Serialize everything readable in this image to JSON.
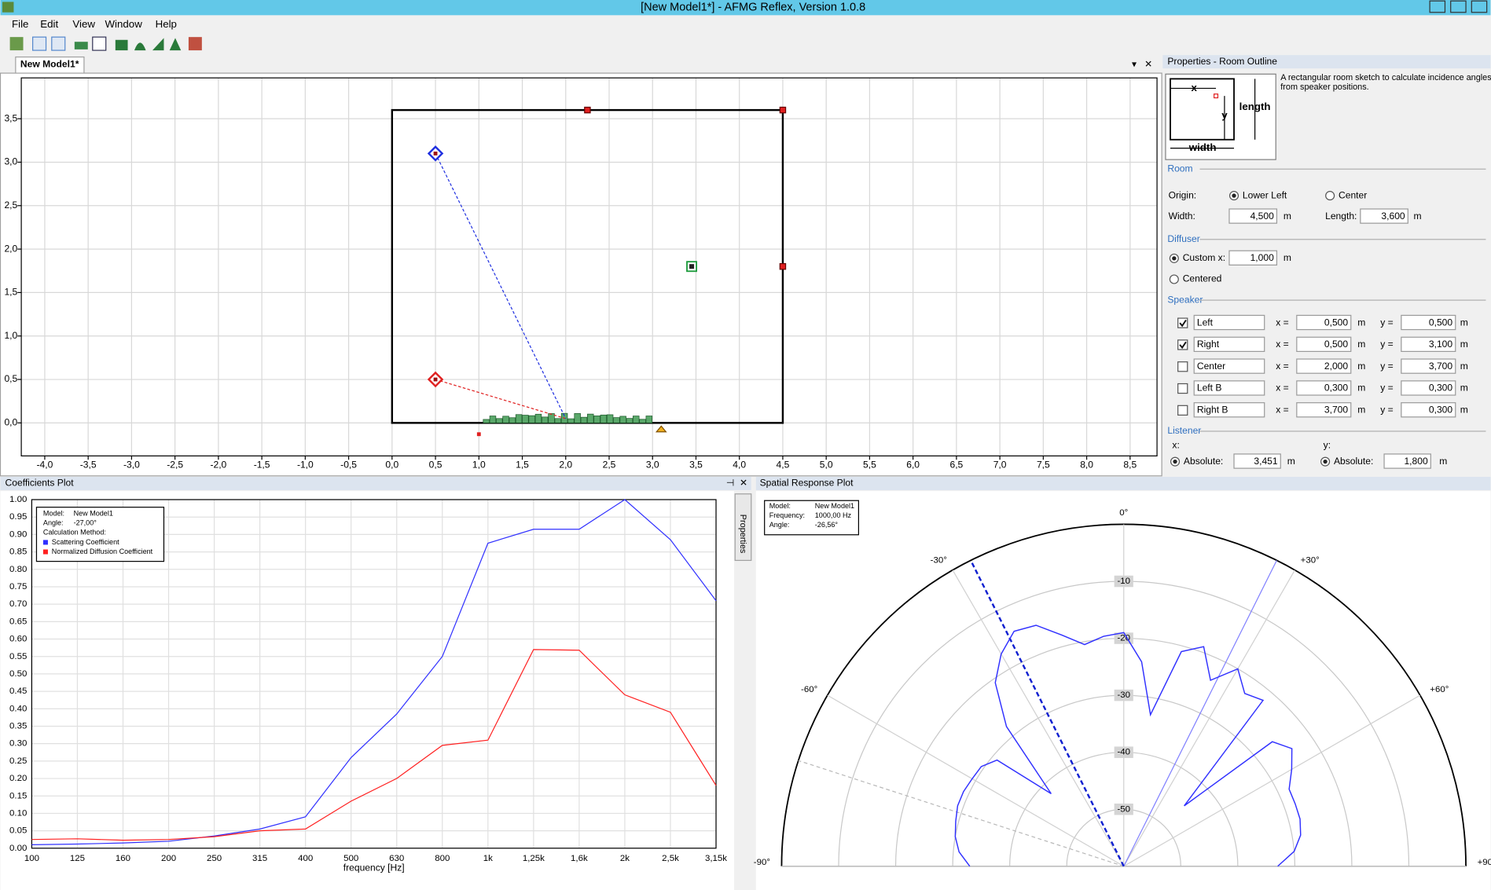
{
  "window": {
    "title": "[New Model1*] - AFMG Reflex, Version 1.0.8",
    "menu": [
      "File",
      "Edit",
      "View",
      "Window",
      "Help"
    ]
  },
  "document_tab": "New Model1*",
  "room_view": {
    "type": "room",
    "xlim": [
      -4.27,
      8.81
    ],
    "ylim": [
      -0.38,
      3.97
    ],
    "grid": true,
    "xticks": [
      {
        "value": -4,
        "label": "-4,0"
      },
      {
        "value": -3.5,
        "label": "-3,5"
      },
      {
        "value": -3,
        "label": "-3,0"
      },
      {
        "value": -2.5,
        "label": "-2,5"
      },
      {
        "value": -2,
        "label": "-2,0"
      },
      {
        "value": -1.5,
        "label": "-1,5"
      },
      {
        "value": -1,
        "label": "-1,0"
      },
      {
        "value": -0.5,
        "label": "-0,5"
      },
      {
        "value": 0,
        "label": "0,0"
      },
      {
        "value": 0.5,
        "label": "0,5"
      },
      {
        "value": 1,
        "label": "1,0"
      },
      {
        "value": 1.5,
        "label": "1,5"
      },
      {
        "value": 2,
        "label": "2,0"
      },
      {
        "value": 2.5,
        "label": "2,5"
      },
      {
        "value": 3,
        "label": "3,0"
      },
      {
        "value": 3.5,
        "label": "3,5"
      },
      {
        "value": 4,
        "label": "4,0"
      },
      {
        "value": 4.5,
        "label": "4,5"
      },
      {
        "value": 5,
        "label": "5,0"
      },
      {
        "value": 5.5,
        "label": "5,5"
      },
      {
        "value": 6,
        "label": "6,0"
      },
      {
        "value": 6.5,
        "label": "6,5"
      },
      {
        "value": 7,
        "label": "7,0"
      },
      {
        "value": 7.5,
        "label": "7,5"
      },
      {
        "value": 8,
        "label": "8,0"
      },
      {
        "value": 8.5,
        "label": "8,5"
      }
    ],
    "yticks": [
      {
        "value": 0,
        "label": "0,0"
      },
      {
        "value": 0.5,
        "label": "0,5"
      },
      {
        "value": 1,
        "label": "1,0"
      },
      {
        "value": 1.5,
        "label": "1,5"
      },
      {
        "value": 2,
        "label": "2,0"
      },
      {
        "value": 2.5,
        "label": "2,5"
      },
      {
        "value": 3,
        "label": "3,0"
      },
      {
        "value": 3.5,
        "label": "3,5"
      }
    ],
    "listener_color": "#1a9a3a"
  },
  "properties": {
    "title": "Properties - Room Outline",
    "description": [
      "A rectangular room sketch to calculate incidence angles",
      "from speaker positions."
    ],
    "sketch": {
      "x": "x",
      "y": "y",
      "length": "length",
      "width": "width"
    },
    "unit": "m",
    "room": {
      "section": "Room",
      "origin_label": "Origin:",
      "origin_options": [
        "Lower Left",
        "Center"
      ],
      "origin_selected": 0,
      "width_label": "Width:",
      "width": {
        "value": 4.5,
        "label": "4,500"
      },
      "length_label": "Length:",
      "length": {
        "value": 3.6,
        "label": "3,600"
      }
    },
    "diffuser": {
      "section": "Diffuser",
      "options": [
        "Custom x:",
        "Centered"
      ],
      "selected": 0,
      "custom_x": {
        "value": 1,
        "label": "1,000"
      }
    },
    "speaker": {
      "section": "Speaker",
      "x_label": "x =",
      "y_label": "y =",
      "items": [
        {
          "name": "Left",
          "checked": true,
          "color": "#e02020",
          "x": {
            "value": 0.5,
            "label": "0,500"
          },
          "y": {
            "value": 0.5,
            "label": "0,500"
          }
        },
        {
          "name": "Right",
          "checked": true,
          "color": "#2030e0",
          "x": {
            "value": 0.5,
            "label": "0,500"
          },
          "y": {
            "value": 3.1,
            "label": "3,100"
          }
        },
        {
          "name": "Center",
          "checked": false,
          "x": {
            "value": 2,
            "label": "2,000"
          },
          "y": {
            "value": 3.7,
            "label": "3,700"
          }
        },
        {
          "name": "Left B",
          "checked": false,
          "x": {
            "value": 0.3,
            "label": "0,300"
          },
          "y": {
            "value": 0.3,
            "label": "0,300"
          }
        },
        {
          "name": "Right B",
          "checked": false,
          "x": {
            "value": 3.7,
            "label": "3,700"
          },
          "y": {
            "value": 0.3,
            "label": "0,300"
          }
        }
      ]
    },
    "listener": {
      "section": "Listener",
      "x_label": "x:",
      "y_label": "y:",
      "mode": "Absolute:",
      "x": {
        "value": 3.451,
        "label": "3,451"
      },
      "y": {
        "value": 1.8,
        "label": "1,800"
      }
    }
  },
  "coefficients_plot": {
    "panel_title": "Coefficients Plot",
    "side_tab": "Properties",
    "info": [
      [
        "Model:",
        "New Model1"
      ],
      [
        "Angle:",
        "-27,00°"
      ],
      [
        "Calculation Method:"
      ]
    ],
    "chart": {
      "type": "line",
      "xlabel": "frequency [Hz]",
      "categories": [
        "100",
        "125",
        "160",
        "200",
        "250",
        "315",
        "400",
        "500",
        "630",
        "800",
        "1k",
        "1,25k",
        "1,6k",
        "2k",
        "2,5k",
        "3,15k"
      ],
      "ylim": [
        0,
        1
      ],
      "grid": true,
      "yticks": [
        {
          "value": 0,
          "label": "0.00"
        },
        0.05,
        {
          "value": 0.1,
          "label": "0.10"
        },
        0.15,
        {
          "value": 0.2,
          "label": "0.20"
        },
        0.25,
        {
          "value": 0.3,
          "label": "0.30"
        },
        0.35,
        {
          "value": 0.4,
          "label": "0.40"
        },
        0.45,
        {
          "value": 0.5,
          "label": "0.50"
        },
        0.55,
        {
          "value": 0.6,
          "label": "0.60"
        },
        0.65,
        {
          "value": 0.7,
          "label": "0.70"
        },
        0.75,
        {
          "value": 0.8,
          "label": "0.80"
        },
        0.85,
        {
          "value": 0.9,
          "label": "0.90"
        },
        0.95,
        {
          "value": 1,
          "label": "1.00"
        }
      ],
      "series": [
        {
          "name": "Scattering Coefficient",
          "color": "#3030ff",
          "values": [
            0.01,
            0.012,
            0.015,
            0.02,
            0.035,
            0.055,
            0.09,
            0.26,
            0.385,
            0.55,
            0.875,
            0.915,
            0.915,
            1.0,
            0.885,
            0.71
          ]
        },
        {
          "name": "Normalized Diffusion Coefficient",
          "color": "#ff2020",
          "values": [
            0.025,
            0.027,
            0.023,
            0.025,
            0.033,
            0.05,
            0.055,
            0.135,
            0.2,
            0.295,
            0.31,
            0.57,
            0.568,
            0.44,
            0.39,
            0.18
          ]
        }
      ]
    }
  },
  "spatial_plot": {
    "panel_title": "Spatial Response Plot",
    "info": [
      [
        "Model:",
        "New Model1"
      ],
      [
        "Frequency:",
        "1000,00 Hz"
      ],
      [
        "Angle:"
      ]
    ],
    "angle": {
      "value": -26.56,
      "label": "-26,56°"
    },
    "chart": {
      "type": "polar",
      "color": "#3030ff",
      "rlim": [
        -60,
        0
      ],
      "rticks": [
        -10,
        -20,
        -30,
        -40,
        -50
      ],
      "angle_ticks": [
        {
          "value": -90,
          "label": "-90°"
        },
        {
          "value": -60,
          "label": "-60°"
        },
        {
          "value": -30,
          "label": "-30°"
        },
        {
          "value": 0,
          "label": "0°"
        },
        {
          "value": 30,
          "label": "+30°"
        },
        {
          "value": 60,
          "label": "+60°"
        },
        {
          "value": 90,
          "label": "+90°"
        }
      ],
      "x": [
        -90,
        -85,
        -80,
        -75,
        -70,
        -65,
        -60,
        -55,
        -50,
        -45,
        -40,
        -35,
        -30,
        -25,
        -20,
        -15,
        -10,
        -5,
        0,
        5,
        10,
        15,
        20,
        25,
        30,
        35,
        40,
        45,
        50,
        55,
        60,
        65,
        70,
        75,
        80,
        85,
        90
      ],
      "values": [
        -33,
        -31,
        -30,
        -29.5,
        -29,
        -29,
        -29.3,
        -29.5,
        -31,
        -42,
        -28,
        -20.7,
        -17,
        -14.5,
        -15,
        -18,
        -20.5,
        -19.5,
        -19,
        -24,
        -33,
        -21,
        -19,
        -24,
        -20,
        -23,
        -22,
        -45,
        -26,
        -24,
        -26,
        -28,
        -28,
        -28,
        -28.5,
        -30,
        -33
      ]
    }
  }
}
